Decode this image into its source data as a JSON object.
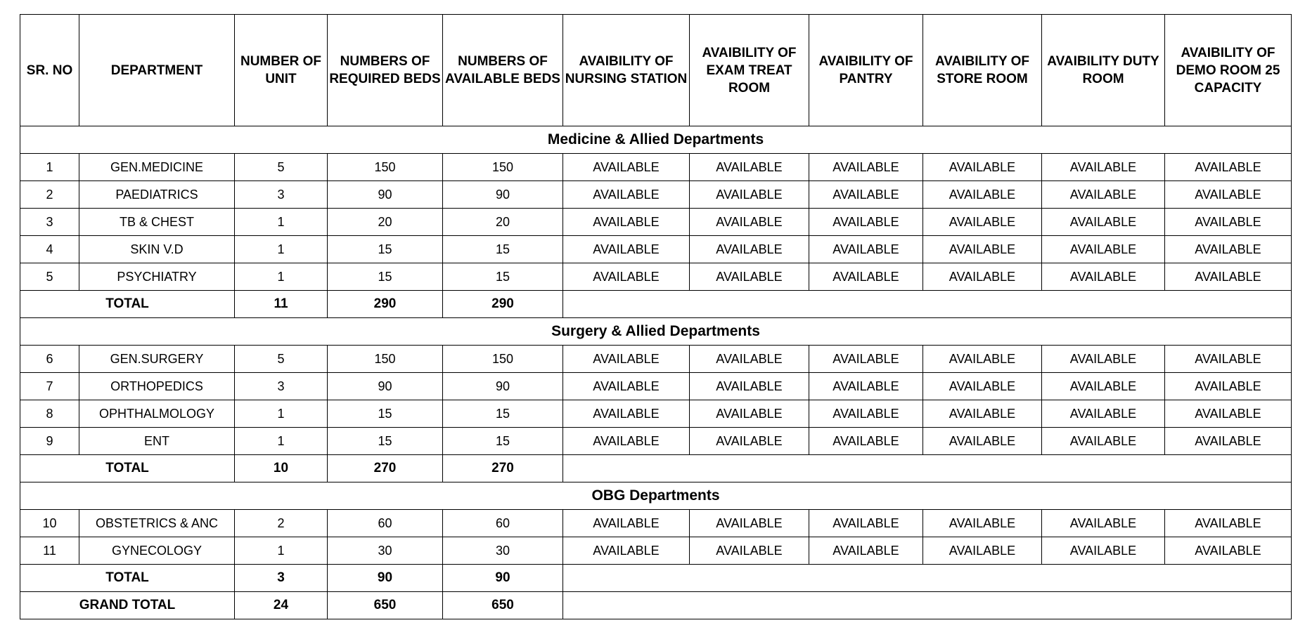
{
  "table": {
    "columns": [
      "SR. NO",
      "DEPARTMENT",
      "NUMBER OF  UNIT",
      "NUMBERS OF REQUIRED BEDS",
      "NUMBERS OF AVAILABLE BEDS",
      "AVAIBILITY OF NURSING STATION",
      "AVAIBILITY OF EXAM TREAT ROOM",
      "AVAIBILITY OF PANTRY",
      "AVAIBILITY OF STORE ROOM",
      "AVAIBILITY DUTY ROOM",
      "AVAIBILITY OF DEMO ROOM 25 CAPACITY"
    ],
    "sections": [
      {
        "title": "Medicine & Allied Departments",
        "rows": [
          [
            1,
            "GEN.MEDICINE",
            5,
            150,
            150,
            "AVAILABLE",
            "AVAILABLE",
            "AVAILABLE",
            "AVAILABLE",
            "AVAILABLE",
            "AVAILABLE"
          ],
          [
            2,
            "PAEDIATRICS",
            3,
            90,
            90,
            "AVAILABLE",
            "AVAILABLE",
            "AVAILABLE",
            "AVAILABLE",
            "AVAILABLE",
            "AVAILABLE"
          ],
          [
            3,
            "TB & CHEST",
            1,
            20,
            20,
            "AVAILABLE",
            "AVAILABLE",
            "AVAILABLE",
            "AVAILABLE",
            "AVAILABLE",
            "AVAILABLE"
          ],
          [
            4,
            "SKIN V.D",
            1,
            15,
            15,
            "AVAILABLE",
            "AVAILABLE",
            "AVAILABLE",
            "AVAILABLE",
            "AVAILABLE",
            "AVAILABLE"
          ],
          [
            5,
            "PSYCHIATRY",
            1,
            15,
            15,
            "AVAILABLE",
            "AVAILABLE",
            "AVAILABLE",
            "AVAILABLE",
            "AVAILABLE",
            "AVAILABLE"
          ]
        ],
        "total": [
          "TOTAL",
          11,
          290,
          290
        ]
      },
      {
        "title": "Surgery & Allied Departments",
        "rows": [
          [
            6,
            "GEN.SURGERY",
            5,
            150,
            150,
            "AVAILABLE",
            "AVAILABLE",
            "AVAILABLE",
            "AVAILABLE",
            "AVAILABLE",
            "AVAILABLE"
          ],
          [
            7,
            "ORTHOPEDICS",
            3,
            90,
            90,
            "AVAILABLE",
            "AVAILABLE",
            "AVAILABLE",
            "AVAILABLE",
            "AVAILABLE",
            "AVAILABLE"
          ],
          [
            8,
            "OPHTHALMOLOGY",
            1,
            15,
            15,
            "AVAILABLE",
            "AVAILABLE",
            "AVAILABLE",
            "AVAILABLE",
            "AVAILABLE",
            "AVAILABLE"
          ],
          [
            9,
            "ENT",
            1,
            15,
            15,
            "AVAILABLE",
            "AVAILABLE",
            "AVAILABLE",
            "AVAILABLE",
            "AVAILABLE",
            "AVAILABLE"
          ]
        ],
        "total": [
          "TOTAL",
          10,
          270,
          270
        ]
      },
      {
        "title": "OBG Departments",
        "rows": [
          [
            10,
            "OBSTETRICS & ANC",
            2,
            60,
            60,
            "AVAILABLE",
            "AVAILABLE",
            "AVAILABLE",
            "AVAILABLE",
            "AVAILABLE",
            "AVAILABLE"
          ],
          [
            11,
            "GYNECOLOGY",
            1,
            30,
            30,
            "AVAILABLE",
            "AVAILABLE",
            "AVAILABLE",
            "AVAILABLE",
            "AVAILABLE",
            "AVAILABLE"
          ]
        ],
        "total": [
          "TOTAL",
          3,
          90,
          90
        ]
      }
    ],
    "grand_total": [
      "GRAND TOTAL",
      24,
      650,
      650
    ]
  }
}
